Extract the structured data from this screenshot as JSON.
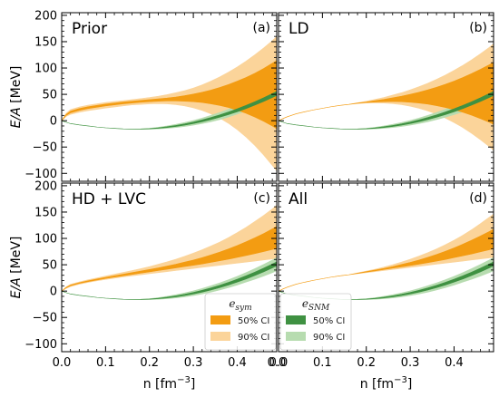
{
  "chart_data": {
    "type": "area",
    "shared": {
      "xlabel": "n [fm",
      "xlabel_sup": "−3",
      "xlabel_close": "]",
      "ylabel": "E/A [MeV]",
      "xlim": [
        0.0,
        0.49
      ],
      "ylim": [
        -115,
        205
      ],
      "xticks": [
        0.0,
        0.1,
        0.2,
        0.3,
        0.4
      ],
      "xtick_labels": [
        "0.0",
        "0.1",
        "0.2",
        "0.3",
        "0.4"
      ],
      "xtick_labels_edge": "0.0",
      "yticks": [
        -100,
        -50,
        0,
        50,
        100,
        150,
        200
      ],
      "ytick_labels": [
        "−100",
        "−50",
        "0",
        "50",
        "100",
        "150",
        "200"
      ],
      "grid": false,
      "colors": {
        "sym_50": "#f39c12",
        "sym_90": "#fbd49a",
        "snm_50": "#3f9142",
        "snm_90": "#b7dcb0"
      }
    },
    "legend": {
      "sym_title": "e",
      "sym_title_sub": "sym",
      "snm_title": "e",
      "snm_title_sub": "SNM",
      "ci50_label": "50% CI",
      "ci90_label": "90% CI",
      "placement": "lower-center"
    },
    "x": [
      0.0,
      0.01,
      0.02,
      0.04,
      0.06,
      0.08,
      0.1,
      0.12,
      0.14,
      0.16,
      0.18,
      0.2,
      0.22,
      0.24,
      0.26,
      0.28,
      0.3,
      0.32,
      0.34,
      0.36,
      0.38,
      0.4,
      0.42,
      0.44,
      0.46,
      0.48,
      0.49
    ],
    "panels": [
      {
        "title": "Prior",
        "letter": "(a)",
        "sym": {
          "lo90": [
            0,
            8,
            12,
            16,
            19,
            21.5,
            24,
            26,
            28,
            30,
            31,
            32,
            32.5,
            32,
            30.5,
            28,
            24.5,
            19.5,
            13,
            5,
            -5,
            -17,
            -31,
            -47,
            -65,
            -85,
            -95
          ],
          "lo50": [
            0,
            10,
            15,
            19.5,
            23,
            25.5,
            28,
            30,
            32,
            33.5,
            35,
            36,
            37,
            37.5,
            37.5,
            37,
            36,
            34.5,
            32,
            29,
            25,
            20,
            14,
            7,
            -1,
            -10,
            -15
          ],
          "hi50": [
            0,
            12,
            18,
            23,
            26.5,
            29,
            31.5,
            33.5,
            35.5,
            37,
            38.5,
            40,
            41.5,
            43,
            45,
            47.5,
            50.5,
            54,
            58,
            63,
            68.5,
            75,
            82,
            90,
            99,
            109,
            114
          ],
          "hi90": [
            0,
            14,
            21,
            26,
            29.5,
            32,
            34.5,
            36.5,
            38,
            40,
            42,
            44,
            46.5,
            49.5,
            53,
            57,
            62,
            68,
            75,
            83,
            92,
            102,
            113,
            125,
            138,
            152,
            160
          ]
        },
        "snm": {
          "lo90": [
            0,
            -3,
            -5.5,
            -8,
            -10,
            -12,
            -13.5,
            -14.5,
            -15.5,
            -16,
            -16.2,
            -16,
            -15.5,
            -14.5,
            -13,
            -11,
            -8.5,
            -5.5,
            -2,
            2,
            7,
            12.5,
            18.5,
            25,
            32,
            39.5,
            43.5
          ],
          "lo50": [
            0,
            -3,
            -5.5,
            -8,
            -10,
            -12,
            -13.5,
            -14.5,
            -15.5,
            -16,
            -16,
            -15.5,
            -14.5,
            -13,
            -11,
            -8.5,
            -5.5,
            -2,
            2,
            6.5,
            11.5,
            17,
            23,
            29.5,
            36.5,
            44,
            48
          ],
          "hi50": [
            0,
            -3,
            -5.5,
            -8,
            -10,
            -12,
            -13.5,
            -14.5,
            -15.5,
            -16,
            -15.8,
            -15,
            -13.5,
            -11.5,
            -9,
            -6,
            -2.5,
            1.5,
            6,
            11,
            16.5,
            22.5,
            29,
            36,
            43.5,
            51.5,
            55.5
          ],
          "hi90": [
            0,
            -3,
            -5.5,
            -8,
            -10,
            -12,
            -13.5,
            -14.5,
            -15.5,
            -16,
            -15.5,
            -14.5,
            -12.5,
            -10,
            -7,
            -3.5,
            0.5,
            5,
            10,
            15.5,
            21.5,
            28,
            35,
            42.5,
            50.5,
            59,
            63.5
          ]
        }
      },
      {
        "title": "LD",
        "letter": "(b)",
        "sym": {
          "lo90": [
            0,
            4,
            7.5,
            13,
            17,
            20.5,
            23.5,
            26.5,
            29,
            31,
            32.5,
            33.5,
            34,
            33.5,
            32.5,
            30.5,
            27.5,
            23.5,
            18.5,
            12.5,
            5,
            -3.5,
            -13,
            -24,
            -36,
            -49,
            -56
          ],
          "lo50": [
            0,
            4,
            7.5,
            13,
            17,
            20.5,
            23.5,
            26.5,
            29,
            31,
            33,
            34.5,
            35.5,
            36,
            36.5,
            36,
            35,
            33.5,
            31.5,
            28.5,
            25,
            21,
            16,
            10.5,
            4,
            -3,
            -7
          ],
          "hi50": [
            0,
            4,
            7.5,
            13,
            17,
            20.5,
            23.5,
            26.5,
            29,
            31,
            33.5,
            35.5,
            38,
            40.5,
            43.5,
            46.5,
            50,
            54,
            58.5,
            63.5,
            69,
            75,
            82,
            89.5,
            97.5,
            106,
            110.5
          ],
          "hi90": [
            0,
            4,
            7.5,
            13,
            17,
            20.5,
            23.5,
            26.5,
            29,
            31,
            34,
            37,
            40.5,
            44,
            48.5,
            53,
            58.5,
            64.5,
            71,
            78.5,
            86.5,
            95.5,
            105,
            115.5,
            127,
            139,
            146
          ]
        },
        "snm": {
          "lo90": [
            0,
            -3,
            -5.5,
            -8,
            -10,
            -12,
            -13.5,
            -14.5,
            -15.5,
            -16,
            -16.2,
            -16,
            -15.5,
            -14.5,
            -13,
            -11,
            -8.5,
            -5.5,
            -2,
            2,
            6.5,
            11.5,
            17,
            23,
            29.5,
            36.5,
            40
          ],
          "lo50": [
            0,
            -3,
            -5.5,
            -8,
            -10,
            -12,
            -13.5,
            -14.5,
            -15.5,
            -16,
            -16,
            -15.5,
            -14.5,
            -13,
            -11,
            -8.5,
            -5.5,
            -2,
            2,
            6.5,
            11.5,
            17,
            23,
            29.5,
            36.5,
            44,
            48
          ],
          "hi50": [
            0,
            -3,
            -5.5,
            -8,
            -10,
            -12,
            -13.5,
            -14.5,
            -15.5,
            -16,
            -15.8,
            -15,
            -13.5,
            -11.5,
            -9,
            -6,
            -2.5,
            1.5,
            6,
            11,
            16.5,
            22.5,
            29,
            36,
            43.5,
            51.5,
            55.5
          ],
          "hi90": [
            0,
            -3,
            -5.5,
            -8,
            -10,
            -12,
            -13.5,
            -14.5,
            -15.5,
            -16,
            -15.5,
            -14.5,
            -12.5,
            -10,
            -7,
            -3.5,
            0.5,
            5,
            10,
            15.5,
            21.5,
            28,
            35,
            42.5,
            50.5,
            59,
            63.5
          ]
        }
      },
      {
        "title": "HD + LVC",
        "letter": "(c)",
        "sym": {
          "lo90": [
            0,
            5,
            8.5,
            13,
            16.5,
            19.5,
            22,
            24.5,
            27,
            29,
            31,
            33,
            35,
            37,
            39,
            41,
            43,
            45,
            47,
            49,
            51,
            53,
            55,
            57,
            59,
            61,
            62
          ],
          "lo50": [
            0,
            6,
            10,
            14.5,
            18,
            21,
            24,
            26.5,
            29,
            31.5,
            34,
            36.5,
            39,
            41.5,
            44,
            46.5,
            49,
            51.5,
            54.5,
            57.5,
            60.5,
            64,
            67.5,
            71,
            75,
            79,
            81
          ],
          "hi50": [
            0,
            7,
            11.5,
            16,
            19.5,
            23,
            26,
            29,
            32,
            35,
            38,
            41,
            44,
            47.5,
            51,
            55,
            59,
            63.5,
            68.5,
            74,
            80,
            86.5,
            93.5,
            101,
            109,
            118,
            123
          ],
          "hi90": [
            0,
            8,
            13,
            17.5,
            21.5,
            25,
            28.5,
            32,
            35.5,
            39,
            42.5,
            46.5,
            51,
            55.5,
            60.5,
            66,
            72,
            78.5,
            85.5,
            93,
            101.5,
            111,
            121,
            132,
            143.5,
            156,
            163
          ]
        },
        "snm": {
          "lo90": [
            0,
            -3,
            -5.5,
            -8,
            -10,
            -12,
            -13.5,
            -14.5,
            -15.5,
            -16,
            -16.2,
            -16,
            -15.5,
            -14.5,
            -13,
            -11,
            -8.5,
            -5.5,
            -2,
            2,
            6.5,
            11.5,
            17,
            22.5,
            28.5,
            35,
            38.5
          ],
          "lo50": [
            0,
            -3,
            -5.5,
            -8,
            -10,
            -12,
            -13.5,
            -14.5,
            -15.5,
            -16,
            -16,
            -15.5,
            -14.5,
            -13,
            -11,
            -8.5,
            -5.5,
            -2,
            2,
            6.5,
            11.5,
            17,
            23,
            29.5,
            36.5,
            44,
            48
          ],
          "hi50": [
            0,
            -3,
            -5.5,
            -8,
            -10,
            -12,
            -13.5,
            -14.5,
            -15.5,
            -16,
            -15.8,
            -15,
            -13.5,
            -11.5,
            -9,
            -6,
            -2.5,
            1.5,
            6,
            11,
            16.5,
            22.5,
            29,
            36,
            43.5,
            51.5,
            55.5
          ],
          "hi90": [
            0,
            -3,
            -5.5,
            -8,
            -10,
            -12,
            -13.5,
            -14.5,
            -15.5,
            -16,
            -15.5,
            -14.5,
            -12.5,
            -10,
            -7,
            -3.5,
            0.5,
            5,
            10,
            15.5,
            21.5,
            28,
            35,
            42.5,
            50.5,
            59,
            63.5
          ]
        }
      },
      {
        "title": "All",
        "letter": "(d)",
        "sym": {
          "lo90": [
            0,
            4,
            7.5,
            13,
            17,
            20.5,
            23.5,
            26.5,
            29,
            31,
            33,
            35,
            37,
            39,
            41,
            43,
            45,
            47,
            49,
            51,
            53,
            55,
            57,
            59,
            61,
            63,
            64
          ],
          "lo50": [
            0,
            4,
            7.5,
            13,
            17,
            20.5,
            23.5,
            26.5,
            29,
            31,
            33.5,
            36,
            38.5,
            41,
            43.5,
            46,
            48.5,
            51,
            54,
            57,
            60,
            63.5,
            67,
            70.5,
            74.5,
            78.5,
            80.5
          ],
          "hi50": [
            0,
            4,
            7.5,
            13,
            17,
            20.5,
            23.5,
            26.5,
            29,
            31,
            34,
            37,
            40,
            43,
            46.5,
            50.5,
            54.5,
            59,
            64,
            69.5,
            75.5,
            82,
            89,
            96.5,
            104.5,
            113,
            117.5
          ],
          "hi90": [
            0,
            4,
            7.5,
            13,
            17,
            20.5,
            23.5,
            26.5,
            29,
            31,
            34.5,
            38,
            41.5,
            45.5,
            50,
            55,
            60.5,
            66.5,
            73,
            80,
            88,
            96.5,
            106,
            116.5,
            128,
            140,
            146
          ]
        },
        "snm": {
          "lo90": [
            0,
            -3,
            -5.5,
            -8,
            -10,
            -12,
            -13.5,
            -14.5,
            -15.5,
            -16,
            -16.2,
            -16,
            -15.5,
            -14.5,
            -13,
            -11,
            -8.5,
            -5.5,
            -2,
            2,
            6.5,
            11.5,
            17,
            22.5,
            28.5,
            35,
            38.5
          ],
          "lo50": [
            0,
            -3,
            -5.5,
            -8,
            -10,
            -12,
            -13.5,
            -14.5,
            -15.5,
            -16,
            -16,
            -15.5,
            -14.5,
            -13,
            -11,
            -8.5,
            -5.5,
            -2,
            2,
            6.5,
            11.5,
            17,
            23,
            29.5,
            36.5,
            44,
            48
          ],
          "hi50": [
            0,
            -3,
            -5.5,
            -8,
            -10,
            -12,
            -13.5,
            -14.5,
            -15.5,
            -16,
            -15.8,
            -15,
            -13.5,
            -11.5,
            -9,
            -6,
            -2.5,
            1.5,
            6,
            11,
            16.5,
            22.5,
            29,
            36,
            43.5,
            51.5,
            55.5
          ],
          "hi90": [
            0,
            -3,
            -5.5,
            -8,
            -10,
            -12,
            -13.5,
            -14.5,
            -15.5,
            -16,
            -15.5,
            -14.5,
            -12.5,
            -10,
            -7,
            -3.5,
            0.5,
            5,
            10,
            15.5,
            21.5,
            28,
            35,
            42.5,
            50.5,
            59,
            63.5
          ]
        }
      }
    ]
  }
}
